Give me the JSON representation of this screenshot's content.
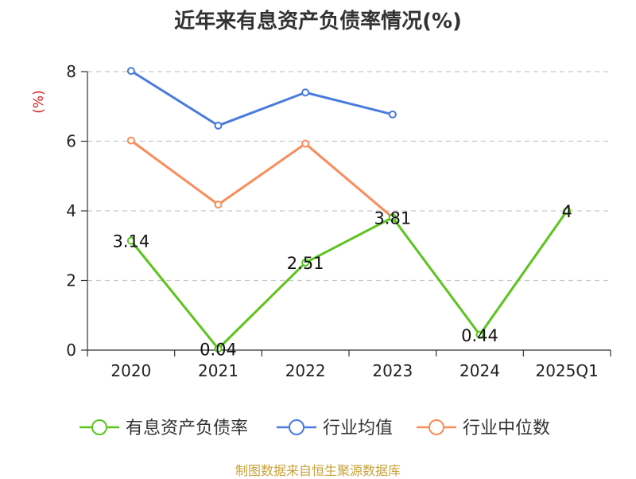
{
  "title": "近年来有息资产负债率情况(%)",
  "source": "制图数据来自恒生聚源数据库",
  "chart_data": {
    "type": "line",
    "title": "近年来有息资产负债率情况(%)",
    "ylabel": "(%)",
    "xlabel": "",
    "categories": [
      "2020",
      "2021",
      "2022",
      "2023",
      "2024",
      "2025Q1"
    ],
    "ylim": [
      0,
      8
    ],
    "yticks": [
      0,
      2,
      4,
      6,
      8
    ],
    "grid": true,
    "legend_position": "bottom",
    "series": [
      {
        "name": "有息资产负债率",
        "color": "#5cc41e",
        "values": [
          3.14,
          0.04,
          2.51,
          3.81,
          0.44,
          4
        ],
        "labels": [
          "3.14",
          "0.04",
          "2.51",
          "3.81",
          "0.44",
          "4"
        ]
      },
      {
        "name": "行业均值",
        "color": "#4a7bdc",
        "values": [
          8.02,
          6.45,
          7.4,
          6.77,
          null,
          null
        ]
      },
      {
        "name": "行业中位数",
        "color": "#fa8c5a",
        "values": [
          6.02,
          4.18,
          5.93,
          3.81,
          null,
          null
        ]
      }
    ]
  }
}
